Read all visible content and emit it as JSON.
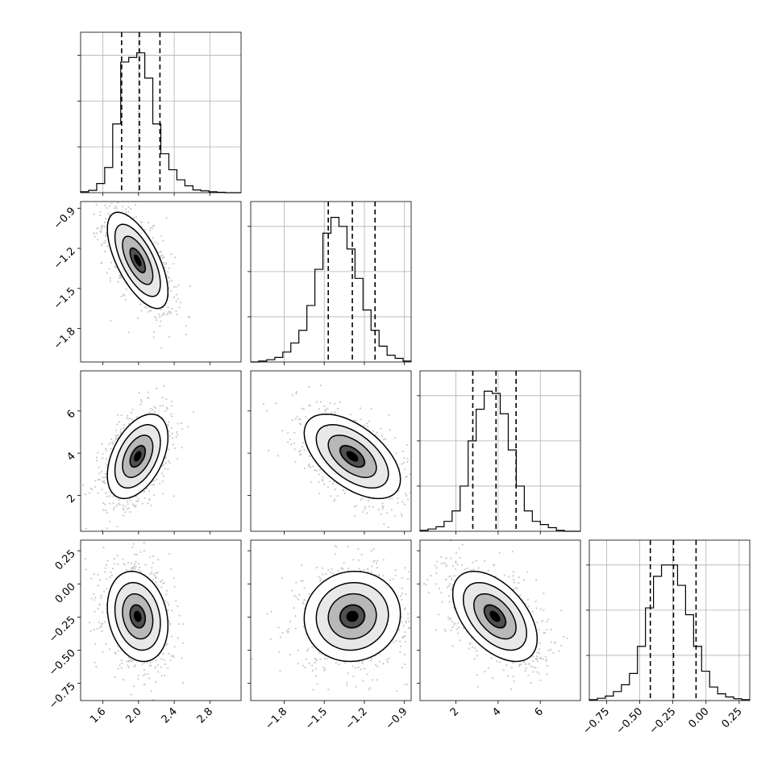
{
  "chart_data": {
    "type": "corner",
    "params": [
      {
        "range": [
          1.35,
          3.15
        ],
        "ticks": [
          "1.6",
          "2.0",
          "2.4",
          "2.8"
        ],
        "tick_values": [
          1.6,
          2.0,
          2.4,
          2.8
        ],
        "quantiles": [
          1.81,
          2.01,
          2.24
        ],
        "hist": {
          "edges_start": 1.35,
          "bin_width": 0.09,
          "counts": [
            2,
            5,
            20,
            55,
            150,
            285,
            295,
            305,
            250,
            150,
            85,
            50,
            28,
            15,
            6,
            4,
            2,
            1,
            0,
            0
          ]
        },
        "hist_yticks": [
          100,
          200,
          300
        ],
        "hist_ymax": 350
      },
      {
        "range": [
          -2.05,
          -0.85
        ],
        "ticks": [
          "-1.8",
          "-1.5",
          "-1.2",
          "-0.9"
        ],
        "tick_values": [
          -1.8,
          -1.5,
          -1.2,
          -0.9
        ],
        "quantiles": [
          -1.47,
          -1.29,
          -1.12
        ],
        "hist": {
          "edges_start": -2.05,
          "bin_width": 0.06,
          "counts": [
            0,
            2,
            5,
            10,
            22,
            42,
            70,
            125,
            205,
            285,
            320,
            300,
            250,
            185,
            115,
            70,
            35,
            15,
            8,
            2
          ]
        },
        "hist_yticks": [
          100,
          200,
          300
        ],
        "hist_ymax": 355
      },
      {
        "range": [
          0.3,
          7.9
        ],
        "ticks": [
          "2",
          "4",
          "6"
        ],
        "tick_values": [
          2,
          4,
          6
        ],
        "quantiles": [
          2.8,
          3.9,
          4.85
        ],
        "hist": {
          "edges_start": 0.3,
          "bin_width": 0.38,
          "counts": [
            2,
            5,
            10,
            22,
            45,
            100,
            200,
            270,
            310,
            305,
            260,
            180,
            100,
            45,
            22,
            15,
            8,
            2,
            0,
            0
          ]
        },
        "hist_yticks": [
          100,
          200,
          300
        ],
        "hist_ymax": 355
      },
      {
        "range": [
          -0.88,
          0.33
        ],
        "ticks": [
          "-0.75",
          "-0.50",
          "-0.25",
          "0.00",
          "0.25"
        ],
        "tick_values": [
          -0.75,
          -0.5,
          -0.25,
          0,
          0.25
        ],
        "quantiles": [
          -0.42,
          -0.245,
          -0.075
        ],
        "hist": {
          "edges_start": -0.88,
          "bin_width": 0.0605,
          "counts": [
            2,
            5,
            10,
            20,
            35,
            60,
            120,
            205,
            275,
            300,
            300,
            255,
            190,
            120,
            65,
            30,
            15,
            8,
            4,
            2
          ]
        },
        "hist_yticks": [
          100,
          200,
          300
        ],
        "hist_ymax": 355
      }
    ],
    "pairs": [
      {
        "row": 1,
        "col": 0,
        "cx": 1.99,
        "cy": -1.29,
        "sx": 0.17,
        "sy": 0.18,
        "rho": -0.65
      },
      {
        "row": 2,
        "col": 0,
        "cx": 1.99,
        "cy": 3.85,
        "sx": 0.17,
        "sy": 1.0,
        "rho": 0.45
      },
      {
        "row": 2,
        "col": 1,
        "cx": -1.29,
        "cy": 3.85,
        "sx": 0.18,
        "sy": 1.0,
        "rho": -0.55
      },
      {
        "row": 3,
        "col": 0,
        "cx": 1.99,
        "cy": -0.245,
        "sx": 0.17,
        "sy": 0.17,
        "rho": -0.2
      },
      {
        "row": 3,
        "col": 1,
        "cx": -1.29,
        "cy": -0.245,
        "sx": 0.18,
        "sy": 0.17,
        "rho": 0.05
      },
      {
        "row": 3,
        "col": 2,
        "cx": 3.85,
        "cy": -0.245,
        "sx": 1.0,
        "sy": 0.17,
        "rho": -0.5
      }
    ],
    "contour_levels_sigma": [
      0.5,
      1.0,
      1.5,
      2.0
    ],
    "grid": true,
    "colors": {
      "line": "#000000",
      "scatter": "#8a8a8a",
      "grid": "#b0b0b0",
      "density": "#000000"
    }
  }
}
